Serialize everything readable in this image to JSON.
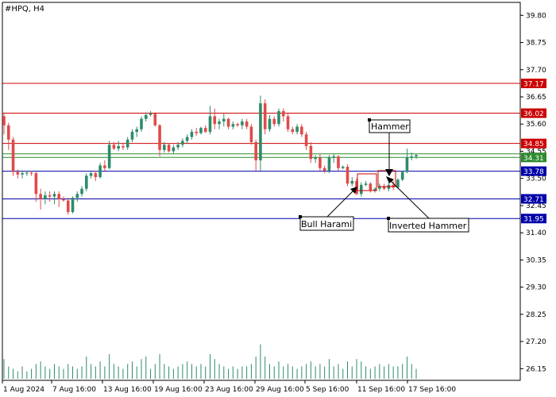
{
  "chart_data": {
    "type": "candlestick",
    "symbol_label": "#HPQ, H4",
    "y_ticks": [
      "39.80",
      "38.75",
      "37.70",
      "36.65",
      "35.60",
      "34.55",
      "33.50",
      "32.45",
      "31.40",
      "30.35",
      "29.30",
      "28.25",
      "27.20",
      "26.15"
    ],
    "ylim": [
      25.7,
      40.3
    ],
    "x_ticks": [
      "1 Aug 2024",
      "7 Aug 16:00",
      "13 Aug 16:00",
      "19 Aug 16:00",
      "23 Aug 16:00",
      "29 Aug 16:00",
      "5 Sep 16:00",
      "11 Sep 16:00",
      "17 Sep 16:00"
    ],
    "grid": false,
    "colors": {
      "bull": "#2e8b6a",
      "bear": "#e04a4a",
      "volume": "#2e8b6a",
      "axis": "#000000"
    },
    "levels": [
      {
        "label": "37.17",
        "value": 37.17,
        "color": "#cc0000"
      },
      {
        "label": "36.02",
        "value": 36.02,
        "color": "#cc0000"
      },
      {
        "label": "34.85",
        "value": 34.85,
        "color": "#cc0000"
      },
      {
        "label": "34.31",
        "value": 34.31,
        "color": "#2e8b2e"
      },
      {
        "label": "33.78",
        "value": 33.78,
        "color": "#0000aa"
      },
      {
        "label": "32.71",
        "value": 32.71,
        "color": "#0000aa"
      },
      {
        "label": "31.95",
        "value": 31.95,
        "color": "#0000aa"
      }
    ],
    "extra_lines": [
      34.45
    ],
    "candles": [
      [
        35.9,
        36.0,
        35.2,
        35.55
      ],
      [
        35.55,
        35.65,
        34.6,
        35.0
      ],
      [
        35.0,
        35.1,
        33.6,
        33.75
      ],
      [
        33.75,
        33.85,
        33.5,
        33.65
      ],
      [
        33.65,
        33.8,
        33.5,
        33.7
      ],
      [
        33.7,
        33.8,
        33.6,
        33.72
      ],
      [
        33.72,
        33.8,
        33.6,
        33.7
      ],
      [
        33.7,
        33.75,
        32.6,
        32.9
      ],
      [
        32.9,
        33.1,
        32.3,
        32.7
      ],
      [
        32.7,
        33.0,
        32.5,
        32.85
      ],
      [
        32.85,
        33.0,
        32.6,
        32.8
      ],
      [
        32.8,
        33.0,
        32.5,
        32.9
      ],
      [
        32.9,
        33.0,
        32.4,
        32.7
      ],
      [
        32.7,
        32.8,
        32.6,
        32.65
      ],
      [
        32.65,
        32.75,
        32.1,
        32.2
      ],
      [
        32.2,
        32.8,
        32.15,
        32.75
      ],
      [
        32.75,
        33.0,
        32.6,
        32.9
      ],
      [
        32.9,
        33.2,
        32.8,
        33.1
      ],
      [
        33.1,
        33.7,
        33.0,
        33.6
      ],
      [
        33.6,
        33.75,
        33.5,
        33.7
      ],
      [
        33.7,
        33.8,
        33.4,
        33.55
      ],
      [
        33.55,
        34.1,
        33.5,
        34.0
      ],
      [
        34.0,
        34.2,
        33.8,
        33.9
      ],
      [
        33.9,
        34.95,
        33.85,
        34.8
      ],
      [
        34.8,
        34.9,
        34.6,
        34.65
      ],
      [
        34.65,
        34.95,
        34.55,
        34.75
      ],
      [
        34.75,
        34.85,
        34.6,
        34.7
      ],
      [
        34.7,
        35.1,
        34.6,
        35.0
      ],
      [
        35.0,
        35.4,
        34.9,
        35.3
      ],
      [
        35.3,
        35.5,
        35.1,
        35.4
      ],
      [
        35.4,
        35.9,
        35.3,
        35.8
      ],
      [
        35.8,
        36.05,
        35.7,
        35.95
      ],
      [
        35.95,
        36.1,
        35.9,
        36.0
      ],
      [
        36.0,
        36.05,
        35.5,
        35.55
      ],
      [
        35.55,
        35.6,
        34.35,
        34.6
      ],
      [
        34.6,
        34.9,
        34.5,
        34.8
      ],
      [
        34.8,
        34.85,
        34.5,
        34.55
      ],
      [
        34.55,
        34.8,
        34.45,
        34.7
      ],
      [
        34.7,
        34.9,
        34.6,
        34.8
      ],
      [
        34.8,
        35.05,
        34.7,
        34.95
      ],
      [
        34.95,
        35.2,
        34.85,
        35.1
      ],
      [
        35.1,
        35.4,
        35.0,
        35.3
      ],
      [
        35.3,
        35.45,
        35.15,
        35.25
      ],
      [
        35.25,
        35.5,
        35.2,
        35.45
      ],
      [
        35.45,
        35.55,
        35.25,
        35.3
      ],
      [
        35.3,
        36.3,
        35.2,
        35.9
      ],
      [
        35.9,
        36.2,
        35.4,
        35.6
      ],
      [
        35.6,
        35.8,
        35.4,
        35.7
      ],
      [
        35.7,
        36.0,
        35.5,
        35.8
      ],
      [
        35.8,
        35.85,
        35.4,
        35.5
      ],
      [
        35.5,
        35.7,
        35.4,
        35.6
      ],
      [
        35.6,
        35.65,
        35.5,
        35.55
      ],
      [
        35.55,
        35.8,
        35.4,
        35.7
      ],
      [
        35.7,
        35.8,
        35.4,
        35.5
      ],
      [
        35.5,
        35.6,
        34.8,
        34.9
      ],
      [
        34.9,
        35.0,
        33.8,
        34.2
      ],
      [
        34.2,
        36.7,
        33.8,
        36.4
      ],
      [
        36.4,
        36.55,
        35.2,
        35.4
      ],
      [
        35.4,
        35.95,
        35.3,
        35.8
      ],
      [
        35.8,
        35.9,
        35.5,
        35.6
      ],
      [
        35.6,
        36.2,
        35.5,
        36.1
      ],
      [
        36.1,
        36.2,
        35.7,
        35.9
      ],
      [
        35.9,
        36.0,
        35.3,
        35.4
      ],
      [
        35.4,
        35.5,
        35.2,
        35.3
      ],
      [
        35.3,
        35.6,
        35.2,
        35.5
      ],
      [
        35.5,
        35.6,
        35.1,
        35.2
      ],
      [
        35.2,
        35.3,
        34.6,
        34.75
      ],
      [
        34.75,
        34.9,
        34.1,
        34.25
      ],
      [
        34.25,
        34.4,
        34.1,
        34.3
      ],
      [
        34.3,
        34.45,
        33.8,
        33.9
      ],
      [
        33.9,
        34.0,
        33.7,
        33.8
      ],
      [
        33.8,
        34.4,
        33.7,
        34.3
      ],
      [
        34.3,
        34.45,
        34.1,
        34.35
      ],
      [
        34.35,
        34.4,
        33.8,
        33.9
      ],
      [
        33.9,
        34.0,
        33.85,
        33.95
      ],
      [
        33.95,
        34.05,
        33.2,
        33.3
      ],
      [
        33.3,
        33.55,
        33.2,
        33.4
      ],
      [
        33.4,
        33.5,
        32.85,
        32.9
      ],
      [
        32.9,
        33.35,
        32.8,
        33.25
      ],
      [
        33.25,
        33.4,
        33.2,
        33.3
      ],
      [
        33.3,
        33.35,
        32.95,
        33.05
      ],
      [
        33.05,
        33.15,
        32.95,
        33.1
      ],
      [
        33.1,
        33.3,
        33.0,
        33.2
      ],
      [
        33.2,
        33.3,
        33.05,
        33.1
      ],
      [
        33.1,
        33.35,
        33.0,
        33.25
      ],
      [
        33.25,
        33.4,
        33.05,
        33.15
      ],
      [
        33.15,
        33.5,
        33.1,
        33.45
      ],
      [
        33.45,
        33.8,
        33.4,
        33.75
      ],
      [
        33.75,
        34.65,
        33.7,
        34.3
      ],
      [
        34.3,
        34.5,
        34.2,
        34.35
      ],
      [
        34.35,
        34.45,
        34.25,
        34.4
      ]
    ],
    "volumes": [
      8,
      5,
      4,
      3,
      5,
      3,
      4,
      6,
      7,
      5,
      4,
      6,
      5,
      4,
      6,
      5,
      4,
      5,
      9,
      6,
      5,
      7,
      5,
      10,
      6,
      5,
      4,
      6,
      7,
      5,
      8,
      9,
      4,
      6,
      10,
      6,
      5,
      4,
      5,
      6,
      7,
      6,
      5,
      6,
      5,
      10,
      8,
      6,
      5,
      4,
      5,
      4,
      5,
      5,
      6,
      9,
      14,
      9,
      6,
      5,
      7,
      5,
      6,
      5,
      4,
      5,
      6,
      7,
      5,
      6,
      5,
      8,
      5,
      6,
      4,
      7,
      5,
      8,
      7,
      5,
      4,
      5,
      6,
      5,
      6,
      5,
      5,
      6,
      9,
      6,
      4
    ]
  },
  "annotations": [
    {
      "label": "Hammer"
    },
    {
      "label": "Bull Harami"
    },
    {
      "label": "Inverted Hammer"
    }
  ]
}
